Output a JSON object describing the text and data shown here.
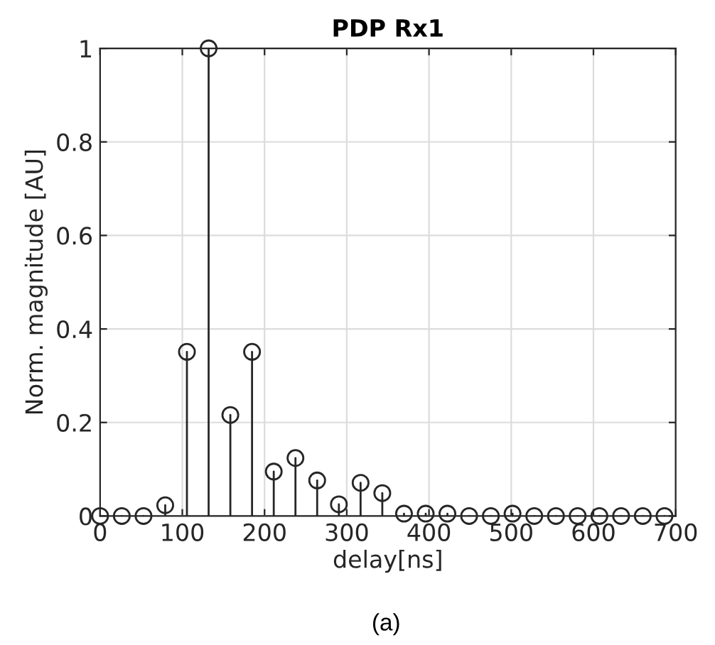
{
  "chart_data": {
    "type": "lollipop",
    "title": "PDP Rx1",
    "xlabel": "delay[ns]",
    "ylabel": "Norm. magnitude [AU]",
    "annotations": [
      "(a)"
    ],
    "x": [
      0,
      26.4,
      52.8,
      79.2,
      105.6,
      132,
      158.4,
      184.8,
      211.2,
      237.6,
      264,
      290.4,
      316.8,
      343.2,
      369.6,
      396,
      422.4,
      448.8,
      475.2,
      501.6,
      528,
      554.4,
      580.8,
      607.2,
      633.6,
      660,
      686.4
    ],
    "series": [
      {
        "color": "#262626",
        "values": [
          0,
          0,
          0,
          0.023,
          0.351,
          1,
          0.216,
          0.351,
          0.095,
          0.124,
          0.076,
          0.025,
          0.071,
          0.049,
          0.005,
          0.005,
          0.005,
          0,
          0,
          0.005,
          0,
          0,
          0,
          0,
          0,
          0,
          0
        ]
      }
    ],
    "xlim": [
      0,
      700
    ],
    "xticks": [
      0,
      100,
      200,
      300,
      400,
      500,
      600,
      700
    ],
    "ylim": [
      0,
      1
    ],
    "yticks": [
      0,
      0.2,
      0.4,
      0.6,
      0.8,
      1
    ],
    "grid": true,
    "marker": "circle",
    "line_style": "solid"
  }
}
